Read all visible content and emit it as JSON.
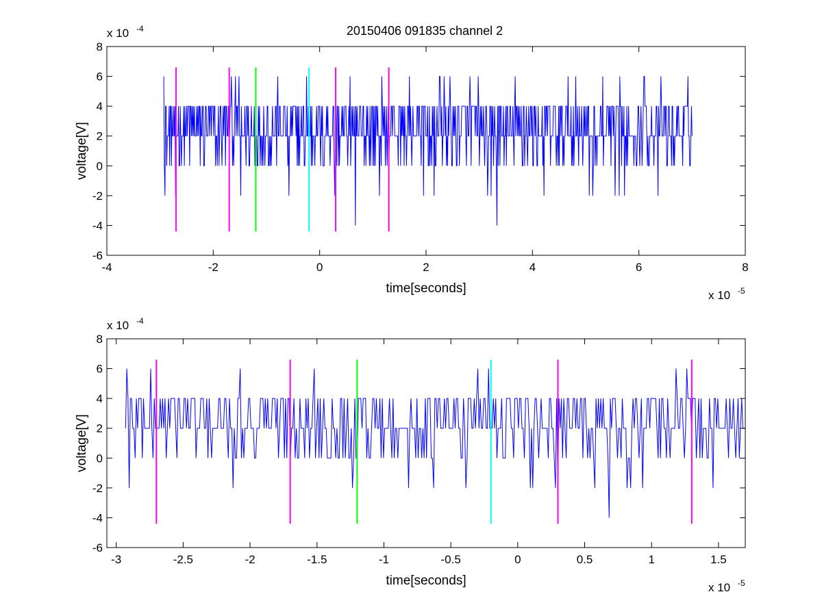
{
  "figure": {
    "title": "20150406 091835 channel 2"
  },
  "colors": {
    "signal": "#0000ff",
    "magenta": "#ff00ff",
    "green": "#00ff00",
    "cyan": "#00ffff",
    "axis": "#000000",
    "background": "#ffffff"
  },
  "chart_data": [
    {
      "type": "line",
      "title": "20150406 091835 channel 2",
      "xlabel": "time[seconds]",
      "ylabel": "voltage[V]",
      "x_exponent_label": "x 10",
      "x_exponent_power": "-5",
      "y_exponent_label": "x 10",
      "y_exponent_power": "-4",
      "xlim": [
        -4,
        8
      ],
      "ylim": [
        -6,
        8
      ],
      "x_ticks": [
        -4,
        -2,
        0,
        2,
        4,
        6,
        8
      ],
      "x_tick_labels": [
        "-4",
        "-2",
        "0",
        "2",
        "4",
        "6",
        "8"
      ],
      "y_ticks": [
        -6,
        -4,
        -2,
        0,
        2,
        4,
        6,
        8
      ],
      "y_tick_labels": [
        "-6",
        "-4",
        "-2",
        "0",
        "2",
        "4",
        "6",
        "8"
      ],
      "grid": false,
      "signal": {
        "x_start": -2.93,
        "x_end": 7.0,
        "levels": [
          -2,
          0,
          2,
          4,
          6
        ],
        "typical_range": [
          0,
          4
        ],
        "baseline": 2,
        "spikes": [
          {
            "x": -2.93,
            "y": 6
          },
          {
            "x": -2.91,
            "y": -2
          },
          {
            "x": -1.52,
            "y": 6
          },
          {
            "x": -0.25,
            "y": 6
          },
          {
            "x": 0.67,
            "y": -4
          },
          {
            "x": 0.28,
            "y": -2
          },
          {
            "x": 2.82,
            "y": 6
          },
          {
            "x": 3.33,
            "y": -4
          },
          {
            "x": 3.67,
            "y": 6
          },
          {
            "x": 5.13,
            "y": -2
          },
          {
            "x": 6.1,
            "y": 6
          },
          {
            "x": 1.12,
            "y": -2
          }
        ]
      },
      "markers": [
        {
          "x": -2.7,
          "y_min": -4.4,
          "y_max": 6.6,
          "color": "magenta"
        },
        {
          "x": -1.7,
          "y_min": -4.4,
          "y_max": 6.6,
          "color": "magenta"
        },
        {
          "x": -1.2,
          "y_min": -4.4,
          "y_max": 6.6,
          "color": "green"
        },
        {
          "x": -0.2,
          "y_min": -4.4,
          "y_max": 6.6,
          "color": "cyan"
        },
        {
          "x": 0.3,
          "y_min": -4.4,
          "y_max": 6.6,
          "color": "magenta"
        },
        {
          "x": 1.3,
          "y_min": -4.4,
          "y_max": 6.6,
          "color": "magenta"
        }
      ]
    },
    {
      "type": "line",
      "title": "",
      "xlabel": "time[seconds]",
      "ylabel": "voltage[V]",
      "x_exponent_label": "x 10",
      "x_exponent_power": "-5",
      "y_exponent_label": "x 10",
      "y_exponent_power": "-4",
      "xlim": [
        -3.07,
        1.7
      ],
      "ylim": [
        -6,
        8
      ],
      "x_ticks": [
        -3,
        -2.5,
        -2,
        -1.5,
        -1,
        -0.5,
        0,
        0.5,
        1,
        1.5
      ],
      "x_tick_labels": [
        "-3",
        "-2.5",
        "-2",
        "-1.5",
        "-1",
        "-0.5",
        "0",
        "0.5",
        "1",
        "1.5"
      ],
      "y_ticks": [
        -6,
        -4,
        -2,
        0,
        2,
        4,
        6,
        8
      ],
      "y_tick_labels": [
        "-6",
        "-4",
        "-2",
        "0",
        "2",
        "4",
        "6",
        "8"
      ],
      "grid": false,
      "signal": {
        "x_start": -2.93,
        "x_end": 1.7,
        "levels": [
          -4,
          -2,
          0,
          2,
          4,
          6
        ],
        "typical_range": [
          0,
          4
        ],
        "baseline": 2,
        "spikes": [
          {
            "x": -2.92,
            "y": 6
          },
          {
            "x": -2.9,
            "y": -2
          },
          {
            "x": -1.52,
            "y": 6
          },
          {
            "x": -0.22,
            "y": 6
          },
          {
            "x": 0.28,
            "y": -2
          },
          {
            "x": 0.68,
            "y": -4
          },
          {
            "x": 1.18,
            "y": 6
          },
          {
            "x": 1.46,
            "y": -2
          },
          {
            "x": -0.63,
            "y": -2
          },
          {
            "x": -0.39,
            "y": -2
          },
          {
            "x": 0.58,
            "y": -2
          },
          {
            "x": 0.09,
            "y": -2
          }
        ]
      },
      "markers": [
        {
          "x": -2.7,
          "y_min": -4.4,
          "y_max": 6.6,
          "color": "magenta"
        },
        {
          "x": -1.7,
          "y_min": -4.4,
          "y_max": 6.6,
          "color": "magenta"
        },
        {
          "x": -1.2,
          "y_min": -4.4,
          "y_max": 6.6,
          "color": "green"
        },
        {
          "x": -0.2,
          "y_min": -4.4,
          "y_max": 6.6,
          "color": "cyan"
        },
        {
          "x": 0.3,
          "y_min": -4.4,
          "y_max": 6.6,
          "color": "magenta"
        },
        {
          "x": 1.3,
          "y_min": -4.4,
          "y_max": 6.6,
          "color": "magenta"
        }
      ]
    }
  ]
}
